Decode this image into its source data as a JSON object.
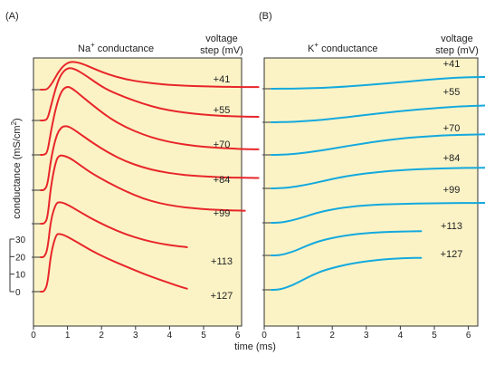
{
  "panel_a_label": "(A)",
  "panel_b_label": "(B)",
  "na_title_pre": "Na",
  "na_title_sup": "+",
  "na_title_post": " conductance",
  "k_title_pre": "K",
  "k_title_sup": "+",
  "k_title_post": " conductance",
  "voltage_header_line1": "voltage",
  "voltage_header_line2": "step (mV)",
  "ylabel_pre": "conductance (mS/cm",
  "ylabel_sup": "2",
  "ylabel_post": ")",
  "xlabel": "time (ms)",
  "colors": {
    "na": "#e8262a",
    "k": "#14a9de",
    "bg": "#fbf3c6"
  },
  "chart_data": [
    {
      "type": "line",
      "panel": "A",
      "x_ticks": [
        "0",
        "1",
        "2",
        "3",
        "4",
        "5",
        "6"
      ],
      "xlim": [
        0,
        6.4
      ],
      "scale_bar_ticks": [
        "30",
        "20",
        "10",
        "0"
      ],
      "series": [
        {
          "name": "+41",
          "x": [
            0,
            0.1,
            0.2,
            0.35,
            0.5,
            0.7,
            0.9,
            1.2,
            1.6,
            2.0,
            2.5,
            3.0,
            3.5,
            4.0,
            4.5,
            5.0,
            5.5,
            6.0,
            6.4
          ],
          "y": [
            0,
            0,
            0.2,
            3,
            7,
            10.5,
            11.8,
            11,
            8.5,
            6.3,
            4.3,
            3.1,
            2.3,
            1.8,
            1.5,
            1.3,
            1.2,
            1.1,
            1.1
          ]
        },
        {
          "name": "+55",
          "x": [
            0,
            0.1,
            0.2,
            0.3,
            0.45,
            0.6,
            0.8,
            1.0,
            1.3,
            1.7,
            2.0,
            2.5,
            3.0,
            3.5,
            4.0,
            4.5,
            5.0,
            5.5,
            6.0,
            6.4
          ],
          "y": [
            0,
            0,
            0.5,
            6,
            14,
            19.5,
            22,
            21.5,
            19,
            15,
            12.5,
            9.5,
            7,
            5,
            3.7,
            2.8,
            2.2,
            1.8,
            1.6,
            1.5
          ]
        },
        {
          "name": "+70",
          "x": [
            0,
            0.1,
            0.2,
            0.3,
            0.45,
            0.6,
            0.75,
            0.9,
            1.2,
            1.5,
            2.0,
            2.5,
            3.0,
            3.5,
            4.0,
            4.5,
            5.0,
            5.5,
            6.0,
            6.4
          ],
          "y": [
            0,
            0,
            1,
            10,
            20,
            26.5,
            28.5,
            28,
            24.5,
            21,
            15.5,
            11.5,
            8.5,
            6.3,
            4.8,
            3.8,
            3.1,
            2.7,
            2.4,
            2.3
          ]
        },
        {
          "name": "+84",
          "x": [
            0,
            0.1,
            0.2,
            0.3,
            0.45,
            0.6,
            0.75,
            0.9,
            1.2,
            1.5,
            2.0,
            2.5,
            3.0,
            3.5,
            4.0,
            4.5,
            5.0,
            5.5,
            6.0,
            6.4
          ],
          "y": [
            0,
            0,
            2,
            13,
            22.5,
            26.3,
            26.8,
            26,
            23,
            20,
            15.5,
            12,
            9.5,
            7.8,
            6.7,
            6,
            5.6,
            5.3,
            5.2,
            5.1
          ]
        },
        {
          "name": "+99",
          "x": [
            0,
            0.1,
            0.2,
            0.3,
            0.45,
            0.55,
            0.7,
            0.9,
            1.2,
            1.5,
            2.0,
            2.5,
            3.0,
            3.5,
            4.0,
            4.5,
            5.0,
            5.5,
            6.0
          ],
          "y": [
            0,
            0,
            2,
            16,
            26.5,
            28.5,
            28.3,
            27,
            24,
            21,
            17,
            13.5,
            10.5,
            8.5,
            7.2,
            6.4,
            5.9,
            5.6,
            5.4
          ]
        },
        {
          "name": "+113",
          "x": [
            0,
            0.1,
            0.2,
            0.3,
            0.45,
            0.55,
            0.7,
            0.9,
            1.2,
            1.5,
            2.0,
            2.5,
            3.0,
            3.5,
            4.0,
            4.3
          ],
          "y": [
            0,
            0,
            3,
            16,
            22.5,
            23,
            22.5,
            21,
            18.5,
            16,
            12.5,
            9.5,
            7.3,
            5.7,
            4.6,
            4.2
          ]
        },
        {
          "name": "+127",
          "x": [
            0,
            0.1,
            0.2,
            0.3,
            0.45,
            0.55,
            0.7,
            0.9,
            1.2,
            1.5,
            2.0,
            2.5,
            3.0,
            3.5,
            4.0,
            4.3
          ],
          "y": [
            0,
            0,
            3,
            16,
            23.8,
            24.1,
            23.5,
            22,
            19.5,
            17,
            13.5,
            10.5,
            7.5,
            5,
            2.5,
            1.2
          ]
        }
      ]
    },
    {
      "type": "line",
      "panel": "B",
      "x_ticks": [
        "0",
        "1",
        "2",
        "3",
        "4",
        "5",
        "6"
      ],
      "xlim": [
        0,
        6.4
      ],
      "series": [
        {
          "name": "+41",
          "x": [
            0,
            0.1,
            0.5,
            1.0,
            1.5,
            2.0,
            2.5,
            3.0,
            3.5,
            4.0,
            4.5,
            5.0,
            5.5,
            6.0,
            6.4
          ],
          "y": [
            0,
            0,
            0.1,
            0.4,
            1.0,
            1.9,
            3.1,
            4.5,
            6.0,
            7.6,
            9.2,
            10.6,
            11.7,
            12.3,
            12.4
          ]
        },
        {
          "name": "+55",
          "x": [
            0,
            0.1,
            0.5,
            1.0,
            1.5,
            2.0,
            2.5,
            3.0,
            3.5,
            4.0,
            4.5,
            5.0,
            5.5,
            6.0,
            6.4
          ],
          "y": [
            0,
            0,
            0.3,
            1.2,
            2.7,
            4.5,
            6.6,
            8.6,
            10.6,
            12.4,
            14.0,
            15.4,
            16.6,
            17.4,
            17.6
          ]
        },
        {
          "name": "+70",
          "x": [
            0,
            0.1,
            0.5,
            1.0,
            1.5,
            2.0,
            2.5,
            3.0,
            3.5,
            4.0,
            4.5,
            5.0,
            5.5,
            6.0,
            6.4
          ],
          "y": [
            0,
            0,
            0.5,
            2.2,
            4.8,
            7.8,
            10.8,
            13.6,
            16.0,
            17.9,
            19.3,
            20.3,
            21.0,
            21.4,
            21.6
          ]
        },
        {
          "name": "+84",
          "x": [
            0,
            0.1,
            0.5,
            1.0,
            1.5,
            2.0,
            2.5,
            3.0,
            3.5,
            4.0,
            4.5,
            5.0,
            5.5,
            6.0,
            6.4
          ],
          "y": [
            0,
            0,
            0.8,
            3.5,
            7.5,
            11.5,
            14.5,
            16.7,
            18.4,
            19.6,
            20.4,
            21.0,
            21.4,
            21.7,
            21.8
          ]
        },
        {
          "name": "+99",
          "x": [
            0,
            0.1,
            0.3,
            0.6,
            0.9,
            1.2,
            1.5,
            2.0,
            2.5,
            3.0,
            3.5,
            4.0,
            4.5,
            5.0,
            5.5,
            6.0,
            6.4
          ],
          "y": [
            0,
            0,
            0.4,
            2.5,
            5.5,
            9.0,
            12.0,
            15.5,
            17.5,
            18.8,
            19.6,
            20.1,
            20.4,
            20.6,
            20.8,
            20.9,
            21.0
          ]
        },
        {
          "name": "+113",
          "x": [
            0,
            0.1,
            0.3,
            0.6,
            0.9,
            1.2,
            1.5,
            2.0,
            2.5,
            3.0,
            3.5,
            4.0,
            4.4
          ],
          "y": [
            0,
            0,
            0.6,
            3.5,
            8.0,
            12.5,
            16.0,
            20.0,
            22.5,
            24.0,
            24.8,
            25.2,
            25.4
          ]
        },
        {
          "name": "+127",
          "x": [
            0,
            0.1,
            0.3,
            0.6,
            0.9,
            1.2,
            1.5,
            2.0,
            2.5,
            3.0,
            3.5,
            4.0,
            4.4
          ],
          "y": [
            0,
            0,
            0.8,
            4.5,
            10.0,
            15.5,
            20.0,
            25.0,
            28.5,
            31.0,
            32.6,
            33.4,
            33.6
          ]
        }
      ]
    }
  ]
}
